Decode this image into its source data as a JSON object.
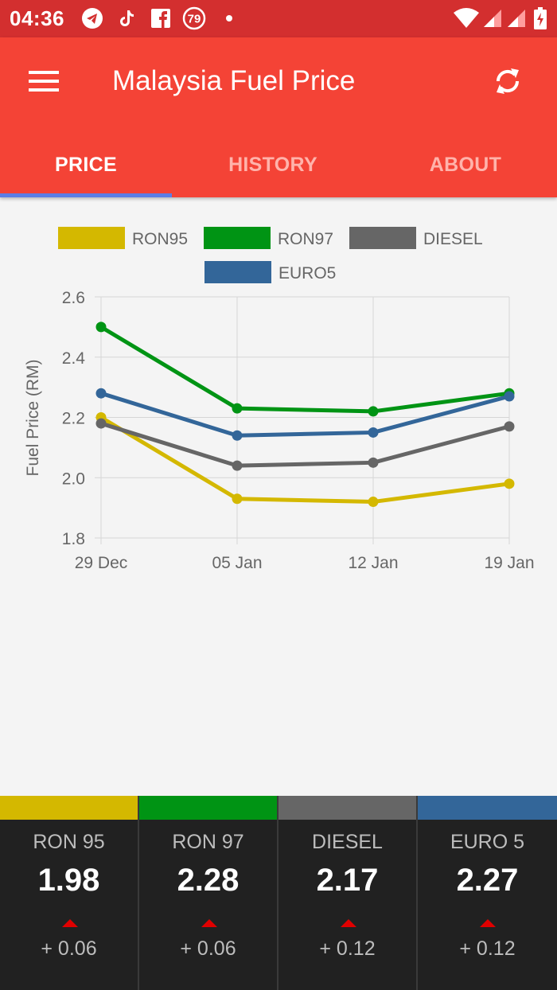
{
  "status_bar": {
    "time": "04:36",
    "notification_badge": "79",
    "icons": [
      "telegram-icon",
      "tiktok-icon",
      "facebook-icon",
      "badge-79-icon",
      "dot-icon",
      "wifi-icon",
      "signal-icon",
      "signal-icon",
      "battery-charging-icon"
    ]
  },
  "app_bar": {
    "title": "Malaysia Fuel Price",
    "menu_icon": "hamburger-menu-icon",
    "refresh_icon": "refresh-icon",
    "background": "#f44336"
  },
  "tabs": [
    {
      "label": "PRICE",
      "active": true
    },
    {
      "label": "HISTORY",
      "active": false
    },
    {
      "label": "ABOUT",
      "active": false
    }
  ],
  "chart_data": {
    "type": "line",
    "ylabel": "Fuel Price (RM)",
    "categories": [
      "29 Dec",
      "05 Jan",
      "12 Jan",
      "19 Jan"
    ],
    "ylim": [
      1.8,
      2.6
    ],
    "yticks": [
      "2.6",
      "2.4",
      "2.2",
      "2.0",
      "1.8"
    ],
    "grid": true,
    "legend_position": "top",
    "series": [
      {
        "name": "RON95",
        "color": "#d4b800",
        "values": [
          2.2,
          1.93,
          1.92,
          1.98
        ]
      },
      {
        "name": "RON97",
        "color": "#009414",
        "values": [
          2.5,
          2.23,
          2.22,
          2.28
        ]
      },
      {
        "name": "DIESEL",
        "color": "#666666",
        "values": [
          2.18,
          2.04,
          2.05,
          2.17
        ]
      },
      {
        "name": "EURO5",
        "color": "#336699",
        "values": [
          2.28,
          2.14,
          2.15,
          2.27
        ]
      }
    ]
  },
  "prices": [
    {
      "name": "RON 95",
      "price": "1.98",
      "change": "+ 0.06",
      "color": "#d4b800"
    },
    {
      "name": "RON 97",
      "price": "2.28",
      "change": "+ 0.06",
      "color": "#009414"
    },
    {
      "name": "DIESEL",
      "price": "2.17",
      "change": "+ 0.12",
      "color": "#666666"
    },
    {
      "name": "EURO 5",
      "price": "2.27",
      "change": "+ 0.12",
      "color": "#336699"
    }
  ]
}
